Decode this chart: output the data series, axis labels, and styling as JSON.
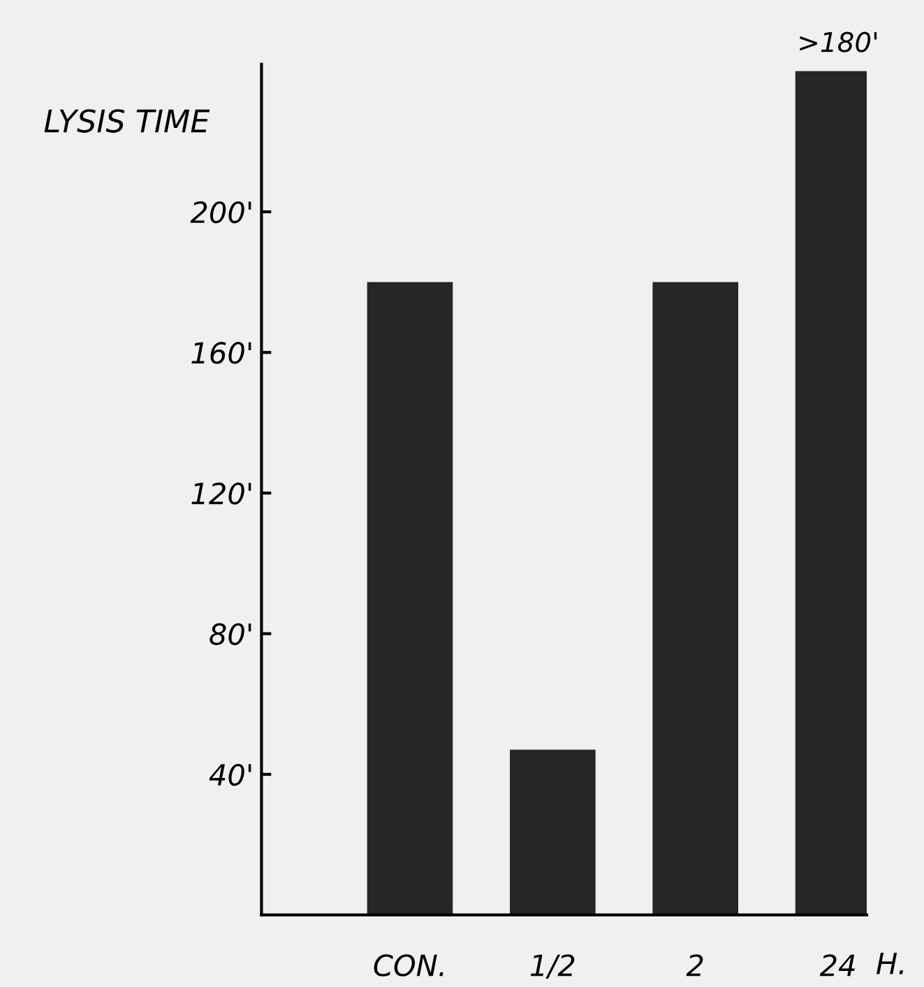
{
  "chart_data": {
    "type": "bar",
    "ylabel": "LYSIS TIME",
    "xlabel": "H.",
    "categories": [
      "CON.",
      "1/2",
      "2",
      "24"
    ],
    "values": [
      180,
      47,
      180,
      240
    ],
    "value_labels": [
      null,
      null,
      null,
      ">180'"
    ],
    "color": "#262626",
    "ylim": [
      0,
      242
    ],
    "yticks": [
      {
        "value": 40,
        "label": "40'"
      },
      {
        "value": 80,
        "label": "80'"
      },
      {
        "value": 120,
        "label": "120'"
      },
      {
        "value": 160,
        "label": "160'"
      },
      {
        "value": 200,
        "label": "200'"
      }
    ],
    "grid": false
  }
}
